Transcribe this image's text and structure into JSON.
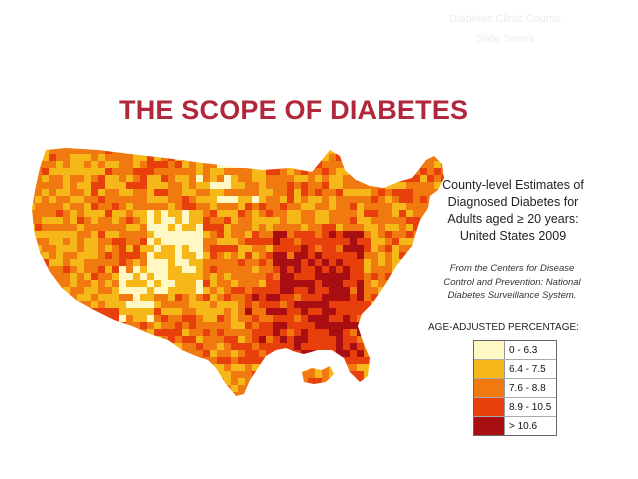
{
  "watermark": {
    "line1": "Diabetes Clinic Course",
    "line2": "Slide Series"
  },
  "title": "THE SCOPE OF DIABETES",
  "map_title": {
    "line1": "County-level Estimates of",
    "line2": "Diagnosed Diabetes for",
    "line3": "Adults aged ≥ 20 years:",
    "line4": "United States 2009"
  },
  "source": {
    "line1": "From the Centers for Disease",
    "line2": "Control and Prevention: National",
    "line3": "Diabetes Surveillance System."
  },
  "legend": {
    "title": "AGE-ADJUSTED PERCENTAGE:",
    "classes": [
      {
        "label": "0 - 6.3",
        "color": "#fff8c4"
      },
      {
        "label": "6.4 - 7.5",
        "color": "#f6b818"
      },
      {
        "label": "7.6 - 8.8",
        "color": "#f07a10"
      },
      {
        "label": "8.9 - 10.5",
        "color": "#e8400c"
      },
      {
        "label": "> 10.6",
        "color": "#a80e12"
      }
    ]
  }
}
